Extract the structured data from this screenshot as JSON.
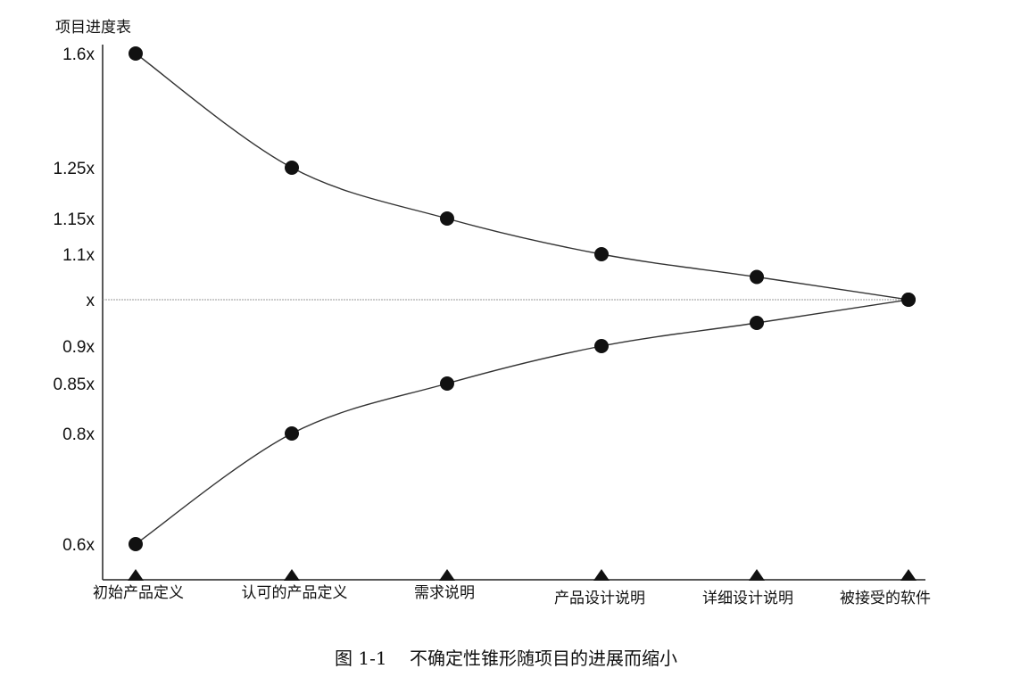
{
  "chart_data": {
    "type": "line",
    "ytitle": "项目进度表",
    "categories": [
      "初始产品定义",
      "认可的产品定义",
      "需求说明",
      "产品设计说明",
      "详细设计说明",
      "被接受的软件"
    ],
    "yticks": [
      {
        "value": 1.6,
        "label": "1.6x"
      },
      {
        "value": 1.25,
        "label": "1.25x"
      },
      {
        "value": 1.15,
        "label": "1.15x"
      },
      {
        "value": 1.1,
        "label": "1.1x"
      },
      {
        "value": 1.0,
        "label": "x"
      },
      {
        "value": 0.9,
        "label": "0.9x"
      },
      {
        "value": 0.85,
        "label": "0.85x"
      },
      {
        "value": 0.8,
        "label": "0.8x"
      },
      {
        "value": 0.6,
        "label": "0.6x"
      }
    ],
    "series": [
      {
        "values": [
          1.6,
          1.25,
          1.15,
          1.1,
          1.05,
          1.0
        ]
      },
      {
        "values": [
          0.6,
          0.8,
          0.85,
          0.9,
          0.95,
          1.0
        ]
      }
    ],
    "reference_line": 1.0,
    "grid": false,
    "legend": "none",
    "caption": "图 1-1    不确定性锥形随项目的进展而缩小"
  }
}
